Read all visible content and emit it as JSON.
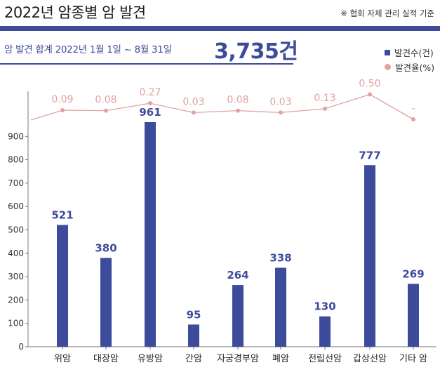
{
  "header": {
    "title": "2022년 암종별 암 발견",
    "note": "※ 협회 자체 관리 실적 기준"
  },
  "summary": {
    "label": "암 발견 합계  2022년 1월 1일 ~ 8월 31일",
    "value": "3,735건"
  },
  "colors": {
    "bar": "#3d4b9b",
    "rate": "#e0a3a1"
  },
  "chart_data": {
    "type": "bar",
    "categories": [
      "위암",
      "대장암",
      "유방암",
      "간암",
      "자궁경부암",
      "폐암",
      "전립선암",
      "갑상선암",
      "기타 암"
    ],
    "series": [
      {
        "name": "발견수(건)",
        "values": [
          521,
          380,
          961,
          95,
          264,
          338,
          130,
          777,
          269
        ]
      },
      {
        "name": "발견율(%)",
        "values": [
          0.09,
          0.08,
          0.27,
          0.03,
          0.08,
          0.03,
          0.13,
          0.5,
          null
        ],
        "labels": [
          "0.09",
          "0.08",
          "0.27",
          "0.03",
          "0.08",
          "0.03",
          "0.13",
          "0.50",
          "-"
        ]
      }
    ],
    "value_labels": [
      "521",
      "380",
      "961",
      "95",
      "264",
      "338",
      "130",
      "777",
      "269"
    ],
    "yticks": [
      "0",
      "100",
      "200",
      "300",
      "400",
      "500",
      "600",
      "700",
      "800",
      "900"
    ],
    "ylim": [
      0,
      1000
    ],
    "legend": [
      "발견수(건)",
      "발견율(%)"
    ],
    "legend_position": "top-right",
    "grid": false
  }
}
